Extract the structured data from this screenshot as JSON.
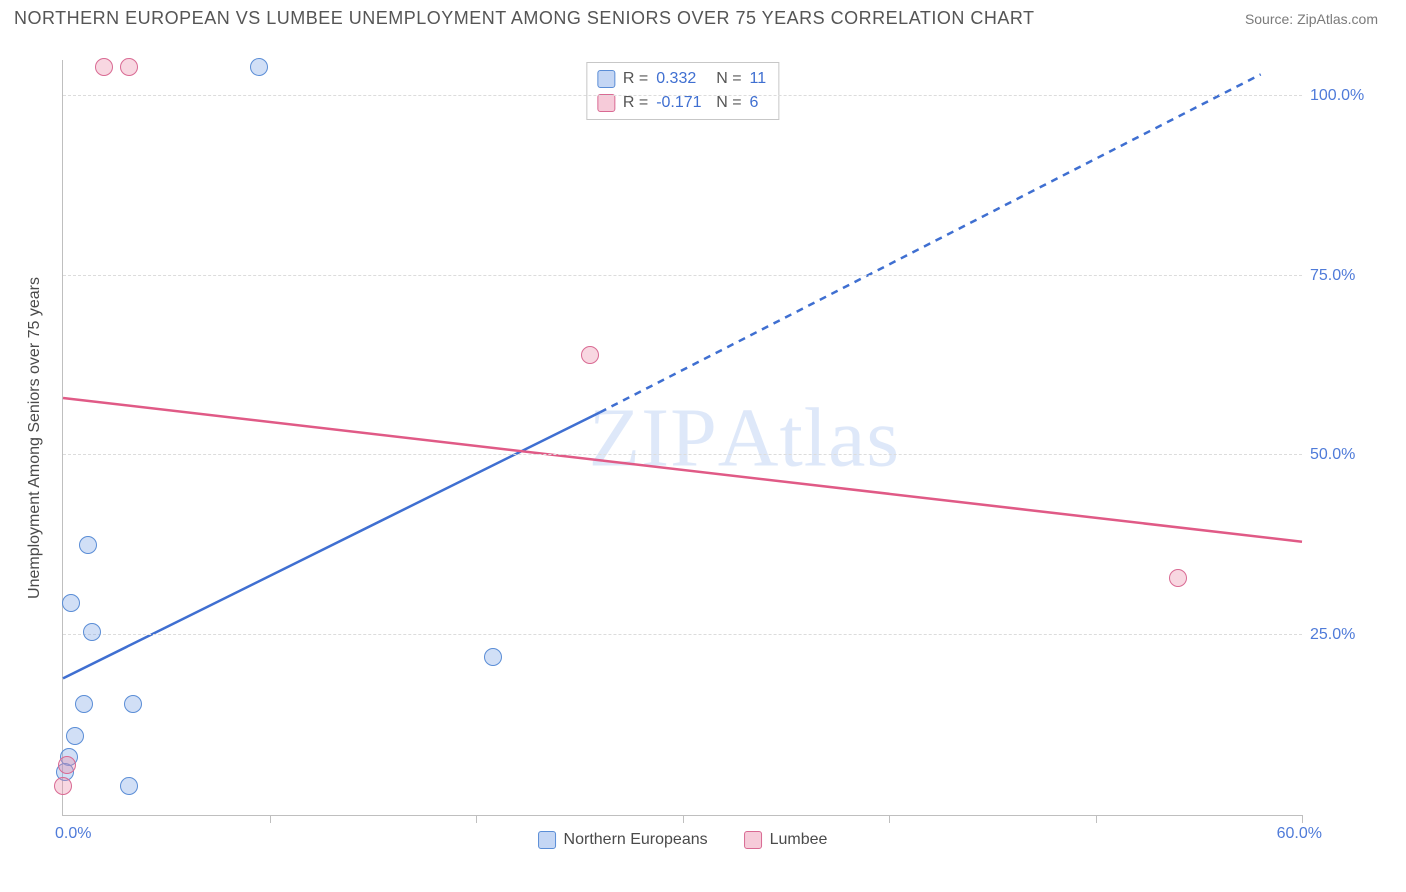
{
  "header": {
    "title": "NORTHERN EUROPEAN VS LUMBEE UNEMPLOYMENT AMONG SENIORS OVER 75 YEARS CORRELATION CHART",
    "source": "Source: ZipAtlas.com"
  },
  "chart": {
    "type": "scatter",
    "y_axis_title": "Unemployment Among Seniors over 75 years",
    "xlim": [
      0,
      60
    ],
    "ylim": [
      0,
      105
    ],
    "x_ticks": [
      10,
      20,
      30,
      40,
      50,
      60
    ],
    "x_origin_label": "0.0%",
    "x_max_label": "60.0%",
    "y_grid": [
      25,
      50,
      75,
      100
    ],
    "y_tick_labels": [
      "25.0%",
      "50.0%",
      "75.0%",
      "100.0%"
    ],
    "background_color": "#ffffff",
    "grid_color": "#dcdcdc",
    "axis_color": "#bfbfbf",
    "marker_radius": 9,
    "series": [
      {
        "key": "a",
        "name": "Northern Europeans",
        "fill": "rgba(124,163,230,0.35)",
        "stroke": "#5a8dd6",
        "R": "0.332",
        "N": "11",
        "trend": {
          "solid": {
            "x1": 0,
            "y1": 19,
            "x2": 26,
            "y2": 56
          },
          "dashed": {
            "x1": 26,
            "y1": 56,
            "x2": 58,
            "y2": 103
          },
          "color": "#3f6fd1",
          "width": 2.5
        },
        "points": [
          {
            "x": 9.5,
            "y": 104
          },
          {
            "x": 1.2,
            "y": 37.5
          },
          {
            "x": 0.4,
            "y": 29.5
          },
          {
            "x": 1.4,
            "y": 25.5
          },
          {
            "x": 20.8,
            "y": 22
          },
          {
            "x": 1.0,
            "y": 15.5
          },
          {
            "x": 3.4,
            "y": 15.5
          },
          {
            "x": 0.6,
            "y": 11
          },
          {
            "x": 0.3,
            "y": 8
          },
          {
            "x": 0.1,
            "y": 6
          },
          {
            "x": 3.2,
            "y": 4
          }
        ]
      },
      {
        "key": "b",
        "name": "Lumbee",
        "fill": "rgba(235,140,170,0.35)",
        "stroke": "#d96a93",
        "R": "-0.171",
        "N": "6",
        "trend": {
          "solid": {
            "x1": 0,
            "y1": 58,
            "x2": 60,
            "y2": 38
          },
          "color": "#e05a86",
          "width": 2.5
        },
        "points": [
          {
            "x": 2.0,
            "y": 104
          },
          {
            "x": 3.2,
            "y": 104
          },
          {
            "x": 25.5,
            "y": 64
          },
          {
            "x": 54.0,
            "y": 33
          },
          {
            "x": 0.2,
            "y": 7
          },
          {
            "x": 0.0,
            "y": 4
          }
        ]
      }
    ],
    "stats_box": {
      "rows": [
        {
          "swatch": "a",
          "r_label": "R =",
          "r_val": "0.332",
          "n_label": "N =",
          "n_val": "11"
        },
        {
          "swatch": "b",
          "r_label": "R =",
          "r_val": "-0.171",
          "n_label": "N =",
          "n_val": "6"
        }
      ]
    },
    "legend": [
      {
        "swatch": "a",
        "label": "Northern Europeans"
      },
      {
        "swatch": "b",
        "label": "Lumbee"
      }
    ],
    "watermark": "ZIPAtlas"
  }
}
